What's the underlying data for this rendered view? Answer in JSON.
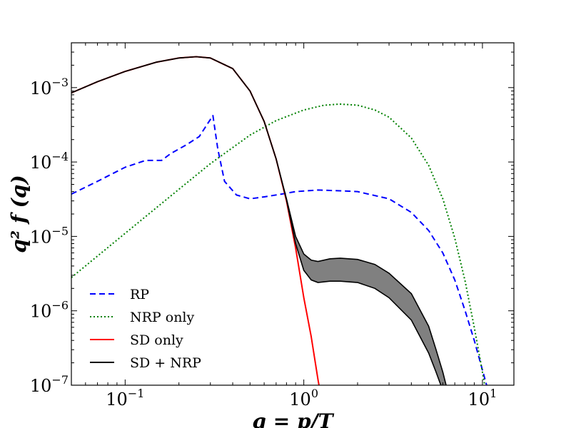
{
  "chart_data": {
    "type": "line",
    "title": "",
    "xlabel": "q = p/T",
    "ylabel": "q² f (q)",
    "x_scale": "log",
    "y_scale": "log",
    "xlim": [
      0.05,
      15
    ],
    "ylim": [
      1e-07,
      0.004
    ],
    "grid": false,
    "legend_position": "lower-left",
    "x_ticks": [
      {
        "value": 0.1,
        "base": "10",
        "exp": "−1"
      },
      {
        "value": 1,
        "base": "10",
        "exp": "0"
      },
      {
        "value": 10,
        "base": "10",
        "exp": "1"
      }
    ],
    "y_ticks": [
      {
        "value": 1e-07,
        "base": "10",
        "exp": "−7"
      },
      {
        "value": 1e-06,
        "base": "10",
        "exp": "−6"
      },
      {
        "value": 1e-05,
        "base": "10",
        "exp": "−5"
      },
      {
        "value": 0.0001,
        "base": "10",
        "exp": "−4"
      },
      {
        "value": 0.001,
        "base": "10",
        "exp": "−3"
      }
    ],
    "series": [
      {
        "name": "RP",
        "color": "#0000ff",
        "style": "dashed",
        "x": [
          0.05,
          0.07,
          0.1,
          0.13,
          0.16,
          0.18,
          0.22,
          0.26,
          0.29,
          0.31,
          0.33,
          0.36,
          0.42,
          0.5,
          0.6,
          0.75,
          0.9,
          1.2,
          1.6,
          2.0,
          3.0,
          4.0,
          5.0,
          6.0,
          7.0,
          8.0,
          9.0,
          10.0,
          11.0
        ],
        "y": [
          3.7e-05,
          5.5e-05,
          8.5e-05,
          0.000105,
          0.000105,
          0.00013,
          0.00017,
          0.00022,
          0.00033,
          0.00042,
          0.00015,
          5.5e-05,
          3.6e-05,
          3.2e-05,
          3.4e-05,
          3.7e-05,
          4e-05,
          4.2e-05,
          4.1e-05,
          4e-05,
          3.2e-05,
          2.1e-05,
          1.2e-05,
          6e-06,
          2.6e-06,
          1e-06,
          4e-07,
          1.6e-07,
          7e-08
        ]
      },
      {
        "name": "NRP only",
        "color": "#008000",
        "style": "dotted",
        "x": [
          0.05,
          0.1,
          0.2,
          0.3,
          0.5,
          0.7,
          1.0,
          1.3,
          1.6,
          2.0,
          2.5,
          3.0,
          4.0,
          5.0,
          6.0,
          7.0,
          8.0,
          9.0,
          10.0,
          11.0
        ],
        "y": [
          2.8e-06,
          1.1e-05,
          4.3e-05,
          9.5e-05,
          0.00023,
          0.00036,
          0.0005,
          0.00058,
          0.0006,
          0.00058,
          0.0005,
          0.0004,
          0.00021,
          9e-05,
          3.2e-05,
          9.5e-06,
          2.5e-06,
          6e-07,
          1.5e-07,
          4e-08
        ]
      },
      {
        "name": "SD only",
        "color": "#ff0000",
        "style": "solid",
        "x": [
          0.05,
          0.07,
          0.1,
          0.15,
          0.2,
          0.25,
          0.3,
          0.4,
          0.5,
          0.6,
          0.7,
          0.8,
          0.9,
          1.0,
          1.1,
          1.2,
          1.3
        ],
        "y": [
          0.00085,
          0.0012,
          0.00165,
          0.0022,
          0.0025,
          0.0026,
          0.0025,
          0.0018,
          0.0009,
          0.00035,
          0.00011,
          3e-05,
          7e-06,
          1.5e-06,
          4.5e-07,
          1.2e-07,
          4e-08
        ]
      },
      {
        "name": "SD + NRP",
        "color": "#000000",
        "style": "solid",
        "band_color": "#808080",
        "x": [
          0.05,
          0.07,
          0.1,
          0.15,
          0.2,
          0.25,
          0.3,
          0.4,
          0.5,
          0.6,
          0.7,
          0.8,
          0.9,
          1.0,
          1.1,
          1.2,
          1.4,
          1.6,
          2.0,
          2.5,
          3.0,
          4.0,
          5.0,
          5.5,
          6.0,
          6.5
        ],
        "y_upper": [
          0.00085,
          0.0012,
          0.00165,
          0.0022,
          0.0025,
          0.0026,
          0.0025,
          0.0018,
          0.0009,
          0.00035,
          0.00011,
          3.2e-05,
          1e-05,
          5.8e-06,
          4.8e-06,
          4.6e-06,
          5e-06,
          5.1e-06,
          4.9e-06,
          4.2e-06,
          3.2e-06,
          1.7e-06,
          6.2e-07,
          3e-07,
          1.5e-07,
          7e-08
        ],
        "y_lower": [
          0.00085,
          0.0012,
          0.00165,
          0.0022,
          0.0025,
          0.0026,
          0.0025,
          0.0018,
          0.0009,
          0.00035,
          0.00011,
          3.1e-05,
          8e-06,
          3.5e-06,
          2.6e-06,
          2.4e-06,
          2.5e-06,
          2.5e-06,
          2.4e-06,
          2e-06,
          1.5e-06,
          7.5e-07,
          2.7e-07,
          1.5e-07,
          8.5e-08,
          4.5e-08
        ]
      }
    ],
    "legend": [
      {
        "label": "RP",
        "color": "#0000ff",
        "style": "dashed"
      },
      {
        "label": "NRP only",
        "color": "#008000",
        "style": "dotted"
      },
      {
        "label": "SD only",
        "color": "#ff0000",
        "style": "solid"
      },
      {
        "label": "SD + NRP",
        "color": "#000000",
        "style": "solid"
      }
    ]
  }
}
